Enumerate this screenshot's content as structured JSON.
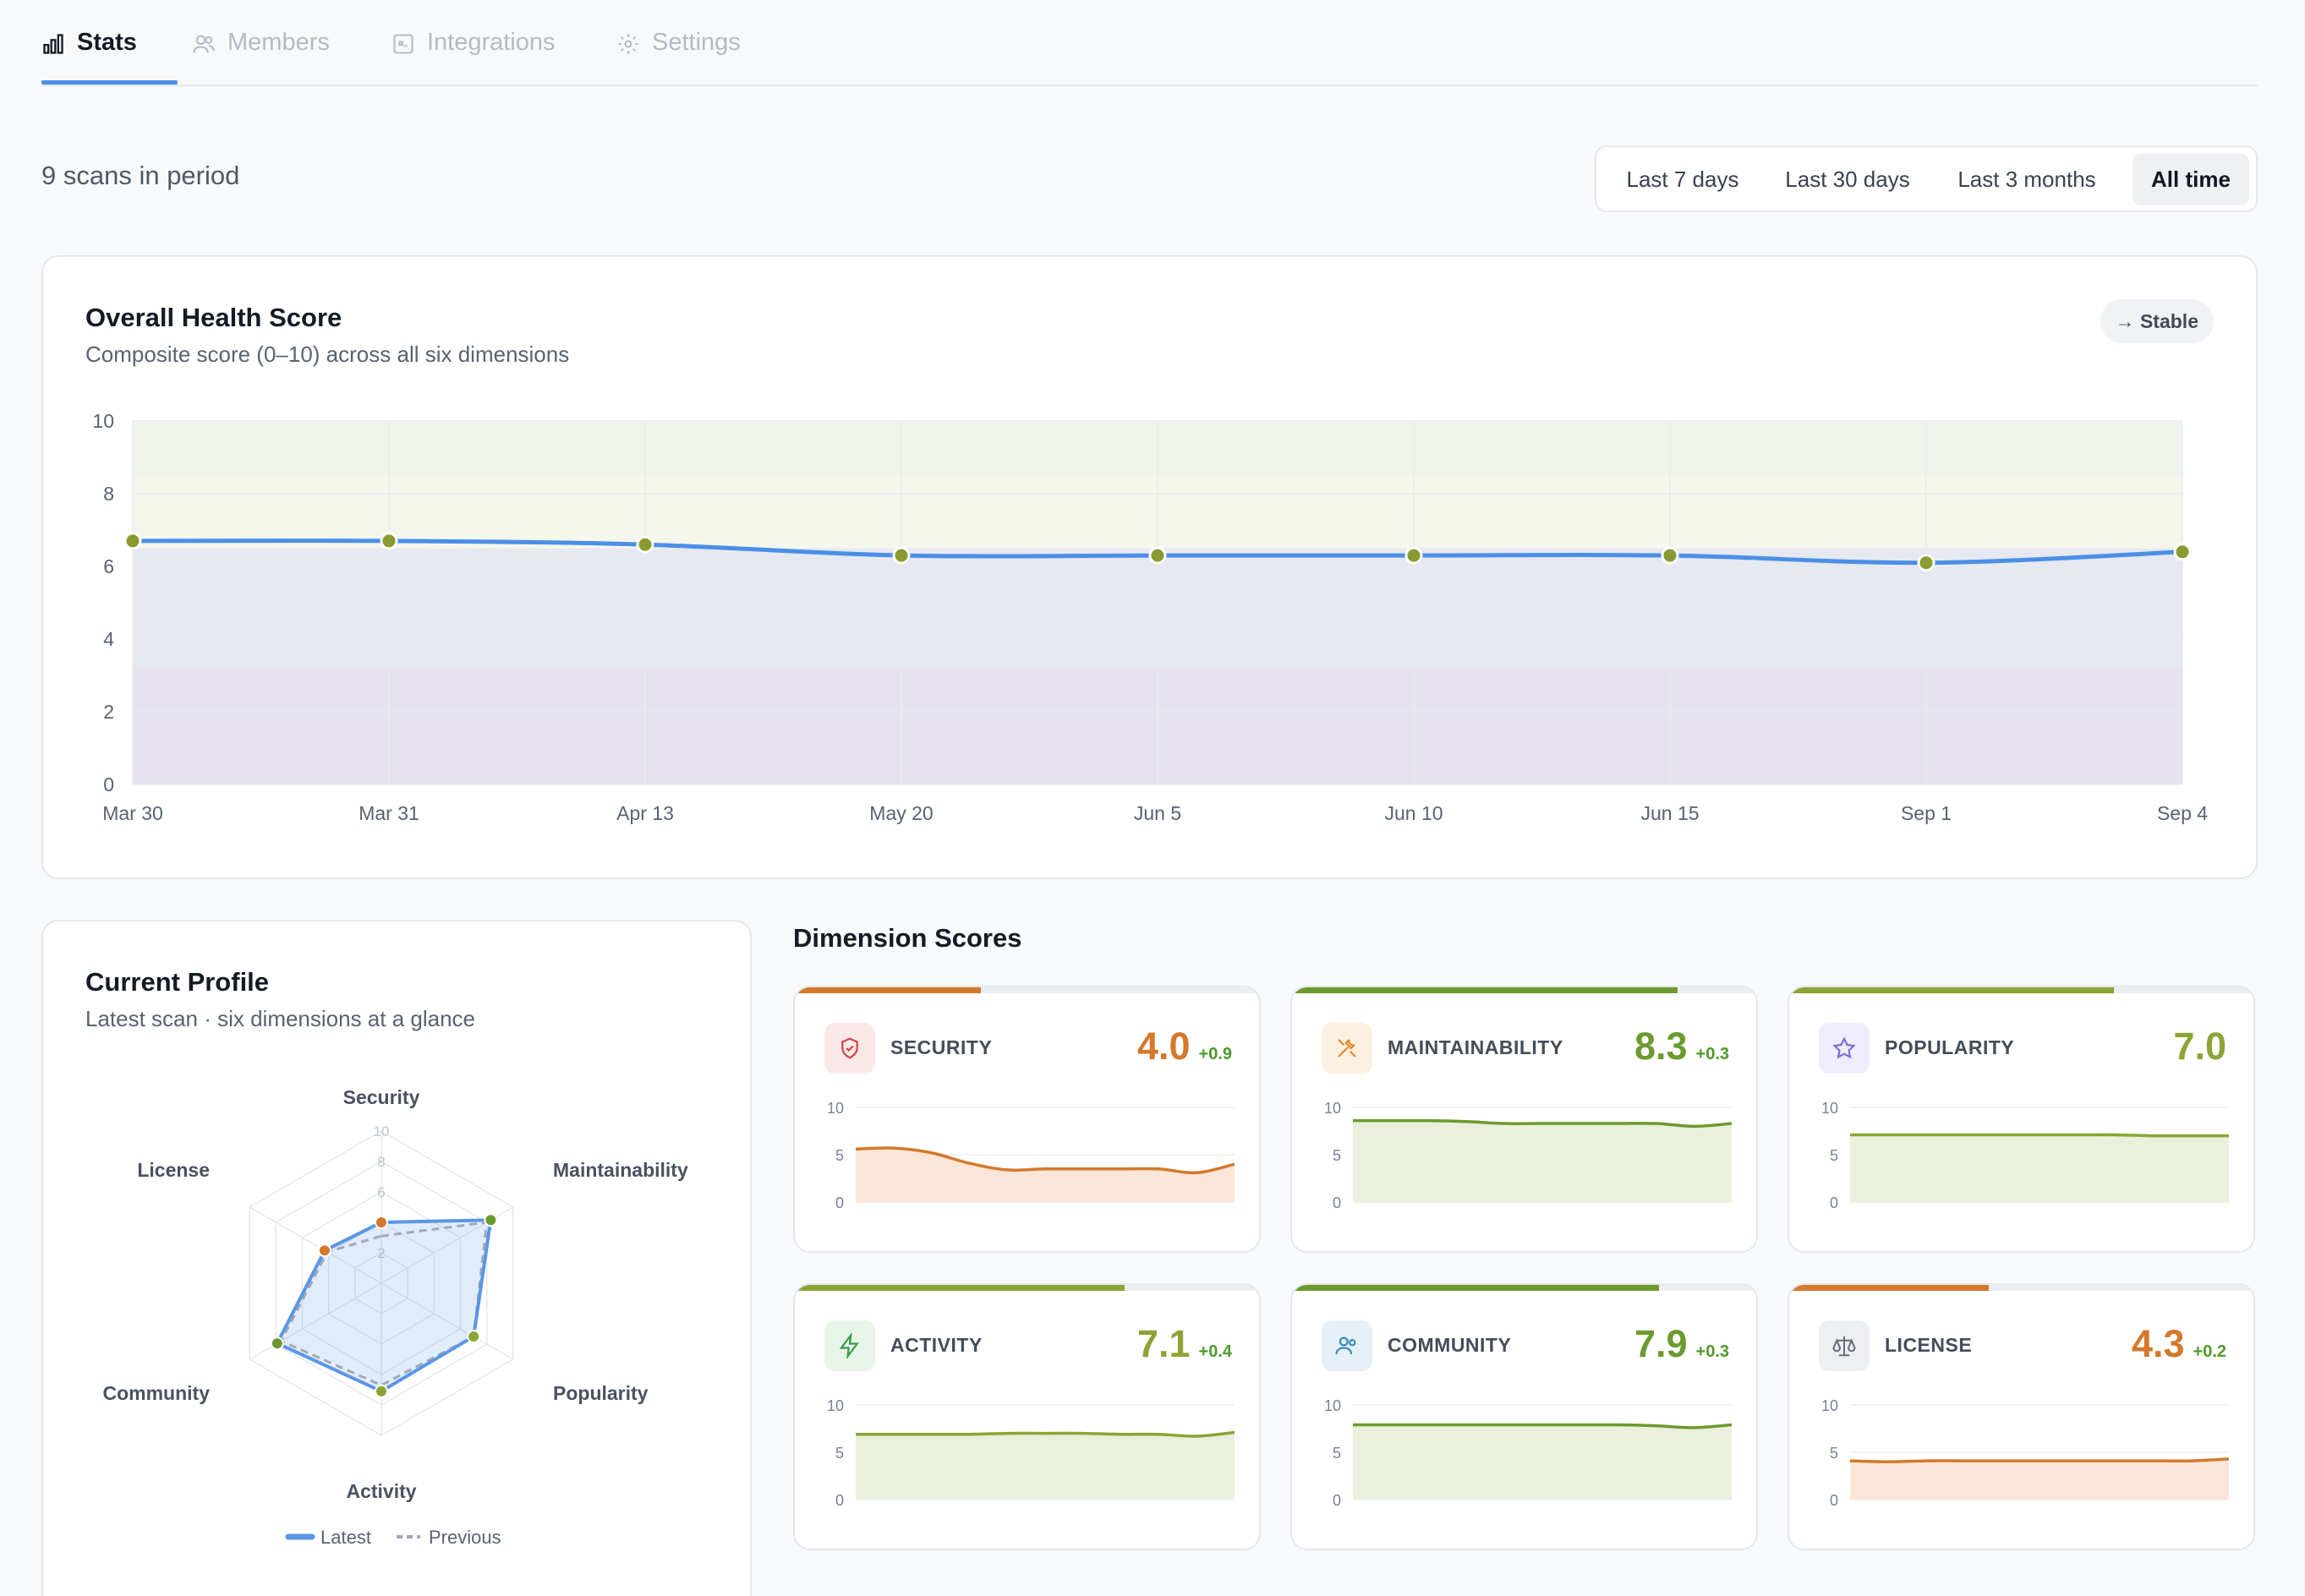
{
  "tabs": [
    {
      "label": "Stats",
      "icon": "bar-chart-icon",
      "active": true
    },
    {
      "label": "Members",
      "icon": "users-icon",
      "active": false
    },
    {
      "label": "Integrations",
      "icon": "plug-icon",
      "active": false
    },
    {
      "label": "Settings",
      "icon": "gear-icon",
      "active": false
    }
  ],
  "summary": {
    "scan_count_text": "9 scans in period"
  },
  "time_range": {
    "options": [
      "Last 7 days",
      "Last 30 days",
      "Last 3 months",
      "All time"
    ],
    "selected": "All time"
  },
  "health": {
    "title": "Overall Health Score",
    "subtitle": "Composite score (0–10) across all six dimensions",
    "trend_badge": "→ Stable"
  },
  "colors": {
    "accent": "#4a8fe7",
    "good": "#6c9a2e",
    "fair": "#8aa534",
    "warn": "#d4782a",
    "point": "#8a9a2e"
  },
  "chart_data": [
    {
      "type": "line",
      "title": "Overall Health Score",
      "x": [
        "Mar 30",
        "Mar 31",
        "Apr 13",
        "May 20",
        "Jun 5",
        "Jun 10",
        "Jun 15",
        "Sep 1",
        "Sep 4"
      ],
      "series": [
        {
          "values": [
            6.7,
            6.7,
            6.6,
            6.3,
            6.3,
            6.3,
            6.3,
            6.1,
            6.4
          ]
        }
      ],
      "y_ticks": [
        0,
        2,
        4,
        6,
        8,
        10
      ],
      "ylim": [
        0,
        10
      ],
      "bands": [
        {
          "from": 0,
          "to": 3.2,
          "color": "#e6e3ef"
        },
        {
          "from": 3.2,
          "to": 6.5,
          "color": "#e6e9f0"
        },
        {
          "from": 6.5,
          "to": 8.5,
          "color": "#f5f6ec"
        },
        {
          "from": 8.5,
          "to": 10,
          "color": "#eff4ea"
        }
      ],
      "grid": true
    },
    {
      "type": "radar",
      "title": "Current Profile",
      "axes": [
        "Security",
        "Maintainability",
        "Popularity",
        "Activity",
        "Community",
        "License"
      ],
      "rings": [
        2,
        4,
        6,
        8,
        10
      ],
      "rmax": 10,
      "series": [
        {
          "name": "Latest",
          "values": [
            4.0,
            8.3,
            7.0,
            7.1,
            7.9,
            4.3
          ],
          "color": "#5b96e6"
        },
        {
          "name": "Previous",
          "values": [
            3.1,
            8.0,
            7.0,
            6.7,
            7.6,
            4.1
          ],
          "color": "#a3a9b5",
          "dashed": true
        }
      ],
      "point_colors": [
        "#d4782a",
        "#6c9a2e",
        "#8aa534",
        "#8aa534",
        "#6c9a2e",
        "#d4782a"
      ]
    }
  ],
  "profile": {
    "title": "Current Profile",
    "subtitle": "Latest scan · six dimensions at a glance",
    "legend": [
      "Latest",
      "Previous"
    ]
  },
  "dimensions": {
    "heading": "Dimension Scores",
    "spark_ticks": [
      "10",
      "5",
      "0"
    ],
    "items": [
      {
        "name": "SECURITY",
        "score": "4.0",
        "delta": "+0.9",
        "icon": "shield-icon",
        "color": "#d4782a",
        "icon_bg": "#fbe9e9",
        "icon_color": "#d04848",
        "spark": [
          5.6,
          5.7,
          5.2,
          4.1,
          3.4,
          3.5,
          3.5,
          3.5,
          3.5,
          3.1,
          4.0
        ]
      },
      {
        "name": "MAINTAINABILITY",
        "score": "8.3",
        "delta": "+0.3",
        "icon": "tools-icon",
        "color": "#6c9a2e",
        "icon_bg": "#fdf0e1",
        "icon_color": "#e58a2e",
        "spark": [
          8.6,
          8.6,
          8.6,
          8.5,
          8.3,
          8.3,
          8.3,
          8.3,
          8.3,
          8.0,
          8.3
        ]
      },
      {
        "name": "POPULARITY",
        "score": "7.0",
        "delta": "",
        "icon": "star-icon",
        "color": "#8aa534",
        "icon_bg": "#efedfb",
        "icon_color": "#7b6fd8",
        "spark": [
          7.1,
          7.1,
          7.1,
          7.1,
          7.1,
          7.1,
          7.1,
          7.1,
          7.0,
          7.0,
          7.0
        ]
      },
      {
        "name": "ACTIVITY",
        "score": "7.1",
        "delta": "+0.4",
        "icon": "bolt-icon",
        "color": "#8aa534",
        "icon_bg": "#e6f5e8",
        "icon_color": "#3e9a4a",
        "spark": [
          6.9,
          6.9,
          6.9,
          6.9,
          7.0,
          7.0,
          7.0,
          6.9,
          6.9,
          6.7,
          7.1
        ]
      },
      {
        "name": "COMMUNITY",
        "score": "7.9",
        "delta": "+0.3",
        "icon": "users-icon",
        "color": "#6c9a2e",
        "icon_bg": "#e5f1f7",
        "icon_color": "#3b8bb7",
        "spark": [
          7.9,
          7.9,
          7.9,
          7.9,
          7.9,
          7.9,
          7.9,
          7.9,
          7.8,
          7.6,
          7.9
        ]
      },
      {
        "name": "LICENSE",
        "score": "4.3",
        "delta": "+0.2",
        "icon": "scale-icon",
        "color": "#d4782a",
        "icon_bg": "#eeeff2",
        "icon_color": "#646b79",
        "spark": [
          4.1,
          4.0,
          4.1,
          4.1,
          4.1,
          4.1,
          4.1,
          4.1,
          4.1,
          4.1,
          4.3
        ]
      }
    ]
  }
}
